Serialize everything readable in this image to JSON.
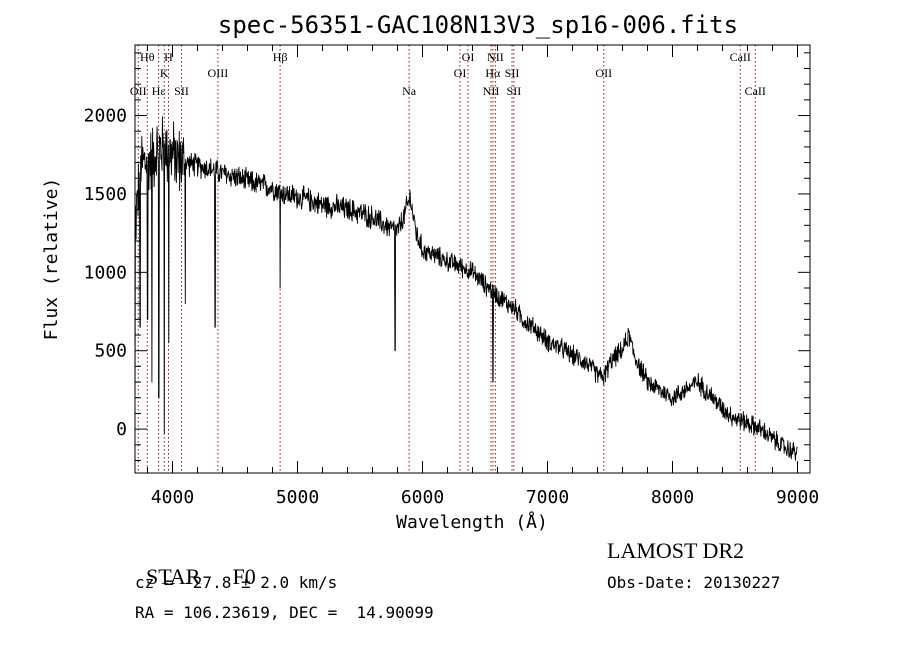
{
  "chart_data": {
    "type": "line",
    "title": "spec-56351-GAC108N13V3_sp16-006.fits",
    "xlabel": "Wavelength (Å)",
    "ylabel": "Flux (relative)",
    "xlim": [
      3700,
      9100
    ],
    "ylim": [
      -280,
      2450
    ],
    "x_ticks": [
      4000,
      5000,
      6000,
      7000,
      8000,
      9000
    ],
    "y_ticks": [
      0,
      500,
      1000,
      1500,
      2000
    ],
    "grid": false,
    "legend": "none",
    "colors": {
      "spectrum": "#000000",
      "lines": "#8b1a1a"
    },
    "spectrum_anchors": {
      "x": [
        3700,
        3750,
        3800,
        3850,
        3900,
        3950,
        4000,
        4050,
        4100,
        4200,
        4300,
        4400,
        4500,
        4600,
        4700,
        4800,
        4900,
        5000,
        5100,
        5200,
        5300,
        5400,
        5500,
        5600,
        5700,
        5800,
        5850,
        5900,
        5950,
        6000,
        6100,
        6200,
        6300,
        6400,
        6500,
        6560,
        6600,
        6650,
        6700,
        6750,
        6800,
        6900,
        7000,
        7100,
        7200,
        7300,
        7400,
        7450,
        7500,
        7550,
        7600,
        7650,
        7700,
        7800,
        7900,
        8000,
        8100,
        8200,
        8300,
        8400,
        8500,
        8600,
        8700,
        8800,
        8900,
        9000
      ],
      "y": [
        1300,
        1700,
        1700,
        1750,
        1800,
        1780,
        1750,
        1720,
        1700,
        1680,
        1660,
        1630,
        1610,
        1580,
        1560,
        1540,
        1500,
        1480,
        1460,
        1430,
        1420,
        1400,
        1380,
        1350,
        1300,
        1260,
        1350,
        1480,
        1250,
        1140,
        1110,
        1070,
        1040,
        1000,
        920,
        880,
        850,
        820,
        790,
        760,
        700,
        640,
        560,
        520,
        470,
        430,
        350,
        330,
        420,
        470,
        500,
        600,
        460,
        300,
        250,
        200,
        250,
        300,
        220,
        130,
        70,
        40,
        0,
        -60,
        -120,
        -150
      ]
    },
    "absorption_dips": [
      {
        "x": 3700,
        "y": 0
      },
      {
        "x": 3740,
        "y": 650
      },
      {
        "x": 3800,
        "y": 700
      },
      {
        "x": 3835,
        "y": 300
      },
      {
        "x": 3890,
        "y": 200
      },
      {
        "x": 3934,
        "y": -30
      },
      {
        "x": 3970,
        "y": 550
      },
      {
        "x": 4102,
        "y": 800
      },
      {
        "x": 4340,
        "y": 650
      },
      {
        "x": 4861,
        "y": 900
      },
      {
        "x": 5780,
        "y": 500
      },
      {
        "x": 6563,
        "y": 300
      }
    ],
    "line_markers": [
      {
        "x": 3726,
        "label": "OII",
        "row": 3
      },
      {
        "x": 3798,
        "label": "Hθ",
        "row": 1
      },
      {
        "x": 3889,
        "label": "Hε",
        "row": 3
      },
      {
        "x": 3934,
        "label": "K",
        "row": 2
      },
      {
        "x": 3968,
        "label": "H",
        "row": 1
      },
      {
        "x": 4072,
        "label": "SII",
        "row": 3
      },
      {
        "x": 4363,
        "label": "OIII",
        "row": 2
      },
      {
        "x": 4861,
        "label": "Hβ",
        "row": 1
      },
      {
        "x": 5893,
        "label": "Na",
        "row": 3
      },
      {
        "x": 6300,
        "label": "OI",
        "row": 2
      },
      {
        "x": 6364,
        "label": "OI",
        "row": 1
      },
      {
        "x": 6548,
        "label": "NII",
        "row": 3
      },
      {
        "x": 6563,
        "label": "Hα",
        "row": 2
      },
      {
        "x": 6583,
        "label": "NII",
        "row": 1
      },
      {
        "x": 6716,
        "label": "SII",
        "row": 2
      },
      {
        "x": 6731,
        "label": "SII",
        "row": 3
      },
      {
        "x": 7450,
        "label": "OII",
        "row": 2
      },
      {
        "x": 8542,
        "label": "CaII",
        "row": 1
      },
      {
        "x": 8662,
        "label": "CaII",
        "row": 3
      }
    ]
  },
  "info": {
    "class_label": "STAR",
    "subclass": "F0",
    "survey": "LAMOST DR2",
    "cz": "cz = -27.8 ± 2.0 km/s",
    "obs_date": "Obs-Date: 20130227",
    "coords": "RA = 106.23619, DEC =  14.90099"
  }
}
